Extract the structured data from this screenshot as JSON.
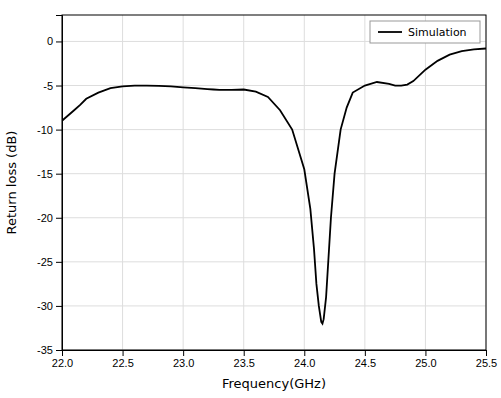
{
  "chart_data": {
    "type": "line",
    "xlabel": "Frequency(GHz)",
    "ylabel": "Return loss (dB)",
    "xlim": [
      22.0,
      25.5
    ],
    "ylim": [
      -35,
      3
    ],
    "xticks": [
      {
        "value": 22.0,
        "label": "22.0"
      },
      22.5,
      {
        "value": 23.0,
        "label": "23.0"
      },
      23.5,
      {
        "value": 24.0,
        "label": "24.0"
      },
      24.5,
      {
        "value": 25.0,
        "label": "25.0"
      },
      25.5
    ],
    "yticks": [
      0,
      -5,
      -10,
      -15,
      -20,
      -25,
      -30,
      -35
    ],
    "x": [
      22.0,
      22.1,
      22.15,
      22.2,
      22.3,
      22.4,
      22.5,
      22.6,
      22.7,
      22.8,
      22.9,
      23.0,
      23.1,
      23.2,
      23.25,
      23.3,
      23.35,
      23.4,
      23.5,
      23.6,
      23.7,
      23.8,
      23.9,
      24.0,
      24.05,
      24.08,
      24.1,
      24.12,
      24.14,
      24.15,
      24.16,
      24.18,
      24.2,
      24.22,
      24.25,
      24.3,
      24.35,
      24.4,
      24.5,
      24.6,
      24.7,
      24.75,
      24.8,
      24.85,
      24.9,
      25.0,
      25.1,
      25.2,
      25.3,
      25.4,
      25.5
    ],
    "series": [
      {
        "name": "Simulation",
        "color": "#000000",
        "values": [
          -9.0,
          -7.8,
          -7.2,
          -6.5,
          -5.8,
          -5.3,
          -5.1,
          -5.0,
          -5.0,
          -5.05,
          -5.1,
          -5.2,
          -5.3,
          -5.4,
          -5.45,
          -5.5,
          -5.5,
          -5.5,
          -5.45,
          -5.7,
          -6.3,
          -7.8,
          -10.0,
          -14.5,
          -19.0,
          -23.5,
          -27.5,
          -30.0,
          -31.8,
          -32.0,
          -31.5,
          -29.0,
          -24.5,
          -20.0,
          -15.0,
          -10.0,
          -7.5,
          -5.8,
          -5.0,
          -4.6,
          -4.8,
          -5.0,
          -5.0,
          -4.9,
          -4.5,
          -3.2,
          -2.2,
          -1.5,
          -1.1,
          -0.9,
          -0.8
        ]
      }
    ],
    "grid": true,
    "legend": "upper right"
  }
}
